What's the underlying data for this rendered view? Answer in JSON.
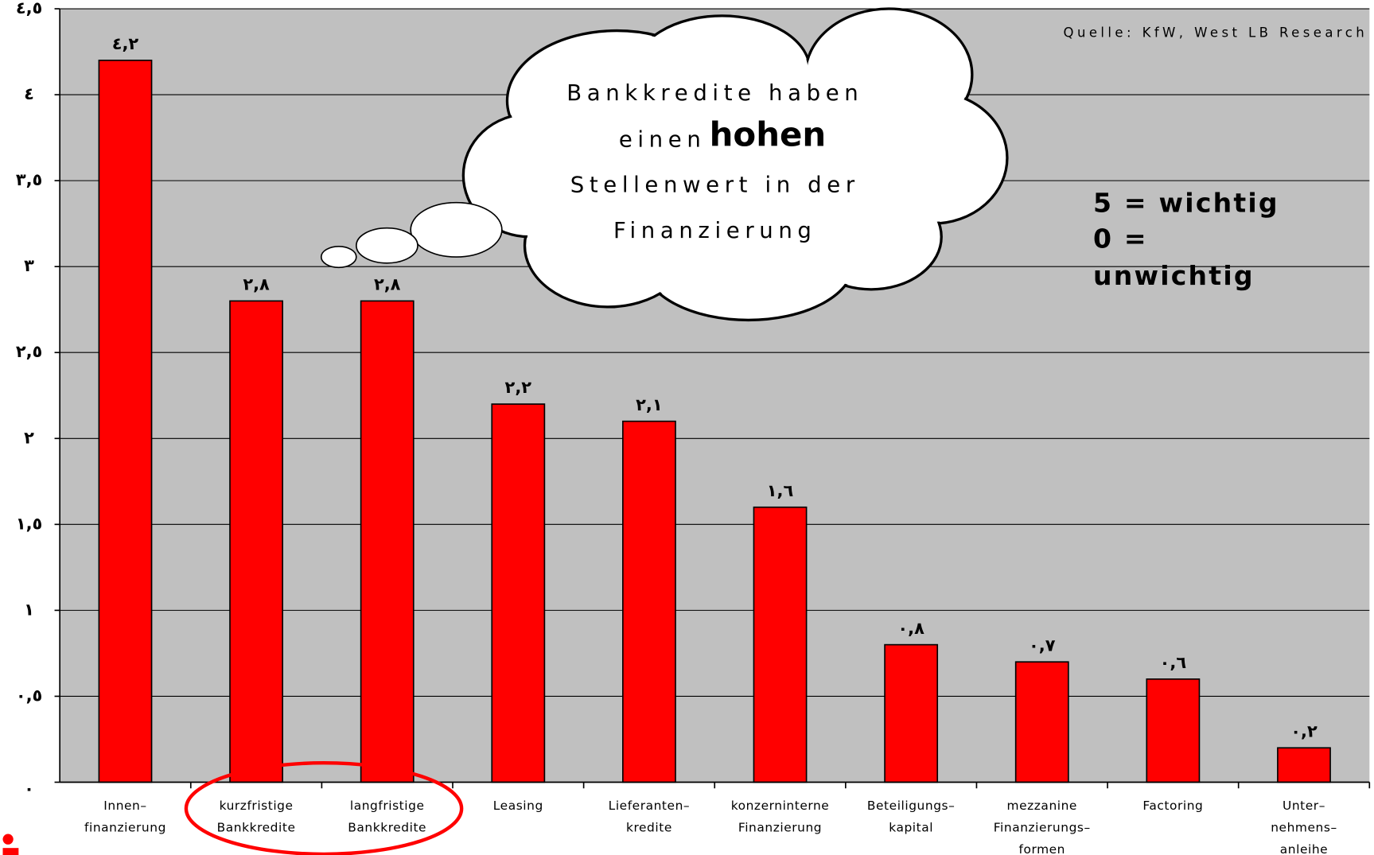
{
  "chart_data": {
    "type": "bar",
    "categories": [
      [
        "Innen–",
        "finanzierung"
      ],
      [
        "kurzfristige",
        "Bankkredite"
      ],
      [
        "langfristige",
        "Bankkredite"
      ],
      [
        "Leasing"
      ],
      [
        "Lieferanten–",
        "kredite"
      ],
      [
        "konzerninterne",
        "Finanzierung"
      ],
      [
        "Beteiligungs–",
        "kapital"
      ],
      [
        "mezzanine",
        "Finanzierungs–",
        "formen"
      ],
      [
        "Factoring"
      ],
      [
        "Unter–",
        "nehmens–",
        "anleihe"
      ]
    ],
    "values": [
      4.2,
      2.8,
      2.8,
      2.2,
      2.1,
      1.6,
      0.8,
      0.7,
      0.6,
      0.2
    ],
    "value_labels": [
      "٤,٢",
      "٢,٨",
      "٢,٨",
      "٢,٢",
      "٢,١",
      "١,٦",
      "٠,٨",
      "٠,٧",
      "٠,٦",
      "٠,٢"
    ],
    "color": "#ff0000",
    "ylim": [
      0,
      4.5
    ],
    "yticks": [
      {
        "value": 0,
        "label": "٠"
      },
      {
        "value": 0.5,
        "label": "٠,٥"
      },
      {
        "value": 1,
        "label": "١"
      },
      {
        "value": 1.5,
        "label": "١,٥"
      },
      {
        "value": 2,
        "label": "٢"
      },
      {
        "value": 2.5,
        "label": "٢,٥"
      },
      {
        "value": 3,
        "label": "٣"
      },
      {
        "value": 3.5,
        "label": "٣,٥"
      },
      {
        "value": 4,
        "label": "٤"
      },
      {
        "value": 4.5,
        "label": "٤,٥"
      }
    ],
    "grid": true,
    "annotations": {
      "source": "Quelle: KfW, West LB Research",
      "cloud": [
        "Bankkredite haben",
        "einen",
        "hohen",
        "Stellenwert in der",
        "Finanzierung"
      ],
      "note": [
        "5 = wichtig",
        "0 =",
        "unwichtig"
      ]
    }
  }
}
